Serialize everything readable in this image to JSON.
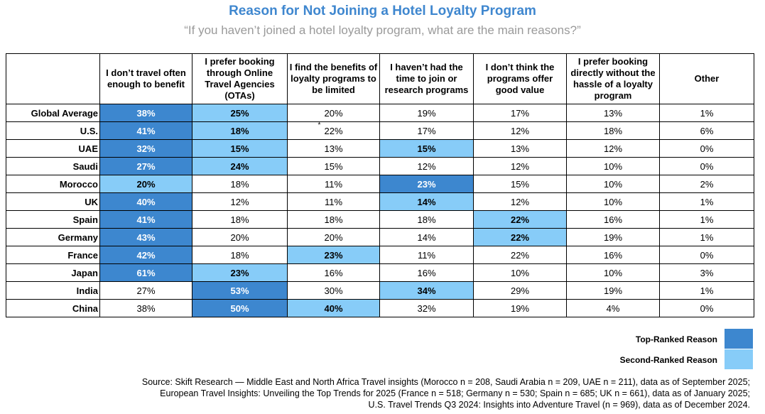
{
  "title": "Reason for Not Joining a Hotel Loyalty Program",
  "subtitle": "“If you haven’t joined a hotel loyalty program, what are the main reasons?”",
  "colors": {
    "top": "#3D87CF",
    "second": "#87CCF8",
    "title": "#3F87CF"
  },
  "chart_data": {
    "type": "table",
    "columns": [
      "I don’t travel often enough to benefit",
      "I prefer booking through Online Travel Agencies (OTAs)",
      "I find the benefits of loyalty programs to be limited",
      "I haven’t had the time to join or research programs",
      "I don’t think the programs offer good value",
      "I prefer booking directly without the hassle of a loyalty program",
      "Other"
    ],
    "rows": [
      {
        "label": "Global Average",
        "values": [
          "38%",
          "25%",
          "20%",
          "19%",
          "17%",
          "13%",
          "1%"
        ],
        "rank": [
          1,
          2,
          0,
          0,
          0,
          0,
          0
        ]
      },
      {
        "label": "U.S.",
        "values": [
          "41%",
          "18%",
          "22%",
          "17%",
          "12%",
          "18%",
          "6%"
        ],
        "rank": [
          1,
          2,
          0,
          0,
          0,
          0,
          0
        ],
        "note_col": 2,
        "note": "*"
      },
      {
        "label": "UAE",
        "values": [
          "32%",
          "15%",
          "13%",
          "15%",
          "13%",
          "12%",
          "0%"
        ],
        "rank": [
          1,
          2,
          0,
          2,
          0,
          0,
          0
        ]
      },
      {
        "label": "Saudi",
        "values": [
          "27%",
          "24%",
          "15%",
          "12%",
          "12%",
          "10%",
          "0%"
        ],
        "rank": [
          1,
          2,
          0,
          0,
          0,
          0,
          0
        ]
      },
      {
        "label": "Morocco",
        "values": [
          "20%",
          "18%",
          "11%",
          "23%",
          "15%",
          "10%",
          "2%"
        ],
        "rank": [
          2,
          0,
          0,
          1,
          0,
          0,
          0
        ]
      },
      {
        "label": "UK",
        "values": [
          "40%",
          "12%",
          "11%",
          "14%",
          "12%",
          "10%",
          "1%"
        ],
        "rank": [
          1,
          0,
          0,
          2,
          0,
          0,
          0
        ]
      },
      {
        "label": "Spain",
        "values": [
          "41%",
          "18%",
          "18%",
          "18%",
          "22%",
          "16%",
          "1%"
        ],
        "rank": [
          1,
          0,
          0,
          0,
          2,
          0,
          0
        ]
      },
      {
        "label": "Germany",
        "values": [
          "43%",
          "20%",
          "20%",
          "14%",
          "22%",
          "19%",
          "1%"
        ],
        "rank": [
          1,
          0,
          0,
          0,
          2,
          0,
          0
        ]
      },
      {
        "label": "France",
        "values": [
          "42%",
          "18%",
          "23%",
          "11%",
          "22%",
          "16%",
          "0%"
        ],
        "rank": [
          1,
          0,
          2,
          0,
          0,
          0,
          0
        ]
      },
      {
        "label": "Japan",
        "values": [
          "61%",
          "23%",
          "16%",
          "16%",
          "10%",
          "10%",
          "3%"
        ],
        "rank": [
          1,
          2,
          0,
          0,
          0,
          0,
          0
        ]
      },
      {
        "label": "India",
        "values": [
          "27%",
          "53%",
          "30%",
          "34%",
          "29%",
          "19%",
          "1%"
        ],
        "rank": [
          0,
          1,
          0,
          2,
          0,
          0,
          0
        ]
      },
      {
        "label": "China",
        "values": [
          "38%",
          "50%",
          "40%",
          "32%",
          "19%",
          "4%",
          "0%"
        ],
        "rank": [
          0,
          1,
          2,
          0,
          0,
          0,
          0
        ]
      }
    ]
  },
  "legend": {
    "top_label": "Top-Ranked Reason",
    "second_label": "Second-Ranked Reason"
  },
  "source": {
    "line1": "Source: Skift Research — Middle East and North Africa Travel insights (Morocco n = 208, Saudi Arabia n = 209, UAE n = 211), data as of September 2025;",
    "line2": "European Travel Insights: Unveiling the Top Trends for 2025 (France n = 518; Germany n = 530; Spain n = 685; UK n = 661), data as of January 2025;",
    "line3": "U.S. Travel Trends Q3 2024: Insights into Adventure Travel (n = 969), data as of December 2024."
  }
}
